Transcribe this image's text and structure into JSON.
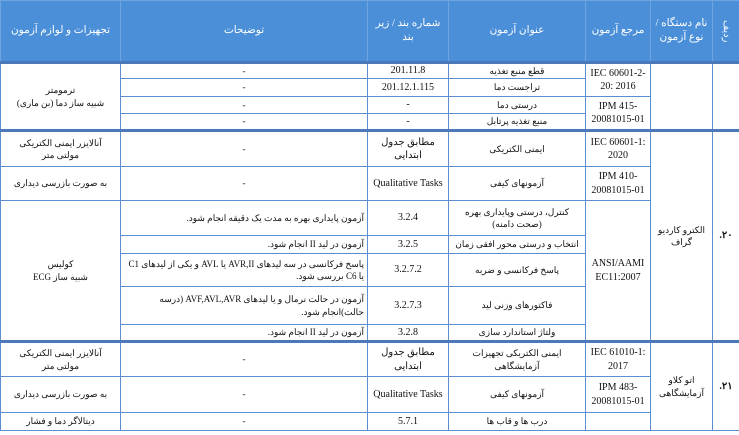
{
  "header": {
    "row_number": "ردیف",
    "device": "نام دستگاه / نوع آزمون",
    "reference": "مرجع آزمون",
    "title": "عنوان آزمون",
    "clause": "شماره بند / زیر بند",
    "description": "توضیحات",
    "equipment": "تجهیزات و لوازم آزمون"
  },
  "groups": [
    {
      "row_number": "",
      "device": "",
      "rows": [
        {
          "reference": {
            "text": "IEC 60601-2-20: 2016",
            "span": 2
          },
          "title": "قطع منبع تغذیه",
          "clause": "201.11.8",
          "description": "-",
          "equipment": {
            "text": "ترمومتر\nشبیه ساز دما (بن ماری)",
            "span": 4
          }
        },
        {
          "title": "تراجست دما",
          "clause": "201.12.1.115",
          "description": "-"
        },
        {
          "reference": {
            "text": "IPM 415-20081015-01",
            "span": 2
          },
          "title": "درستی دما",
          "clause": "-",
          "description": "-"
        },
        {
          "title": "منبع تغذیه پرتابل",
          "clause": "-",
          "description": "-"
        }
      ]
    },
    {
      "row_number": "۲۰.",
      "device": "الکترو کاردیو گراف",
      "rows": [
        {
          "reference": {
            "text": "IEC 60601-1: 2020",
            "span": 1
          },
          "title": "ایمنی الکتریکی",
          "clause": "مطابق جدول ابتدایی",
          "description": "-",
          "equipment": {
            "text": "آنالایزر ایمنی الکتریکی\nمولتی متر",
            "span": 1
          }
        },
        {
          "reference": {
            "text": "IPM 410-20081015-01",
            "span": 1
          },
          "title": "آزمونهای کیفی",
          "clause": "Qualitative Tasks",
          "description": "-",
          "equipment": {
            "text": "به صورت بازرسی دیداری",
            "span": 1
          }
        },
        {
          "reference": {
            "text": "ANSI/AAMI EC11:2007",
            "span": 5
          },
          "title": "کنترل، درستی وپایداری بهره (صحت دامنه)",
          "clause": "3.2.4",
          "description": "آزمون پایداری بهره به مدت یک دقیقه انجام شود.",
          "equipment": {
            "text": "کولیس\nشبیه ساز ECG",
            "span": 5
          }
        },
        {
          "title": "انتخاب و درستی محور افقی زمان",
          "clause": "3.2.5",
          "description": "آزمون در لید II انجام شود."
        },
        {
          "title": "پاسخ فرکانسی و ضربه",
          "clause": "3.2.7.2",
          "description": "پاسخ فرکانسی در سه لیدهای AVR,II یا AVL و یکی از لیدهای C1 یا C6 بررسی شود."
        },
        {
          "title": "فاکتورهای وزنی لید",
          "clause": "3.2.7.3",
          "description": "آزمون در حالت نرمال و یا لیدهای AVF,AVL,AVR (درسه حالت)انجام شود."
        },
        {
          "title": "ولتاژ استاندارد سازی",
          "clause": "3.2.8",
          "description": "آزمون در لید II انجام شود."
        }
      ]
    },
    {
      "row_number": "۲۱.",
      "device": "اتو کلاو آزمایشگاهی",
      "rows": [
        {
          "reference": {
            "text": "IEC 61010-1: 2017",
            "span": 1
          },
          "title": "ایمنی الکتریکی تجهیزات آزمایشگاهی",
          "clause": "مطابق جدول ابتدایی",
          "description": "-",
          "equipment": {
            "text": "آنالایزر ایمنی الکتریکی\nمولتی متر",
            "span": 1
          }
        },
        {
          "reference": {
            "text": "IPM 483-20081015-01",
            "span": 1
          },
          "title": "آزمونهای کیفی",
          "clause": "Qualitative Tasks",
          "description": "-",
          "equipment": {
            "text": "به صورت بازرسی دیداری",
            "span": 1
          }
        },
        {
          "reference": {
            "text": "",
            "span": 1
          },
          "title": "درب ها و قاب ها",
          "clause": "5.7.1",
          "description": "-",
          "equipment": {
            "text": "دیتالاگر دما و فشار",
            "span": 1
          }
        }
      ]
    }
  ]
}
